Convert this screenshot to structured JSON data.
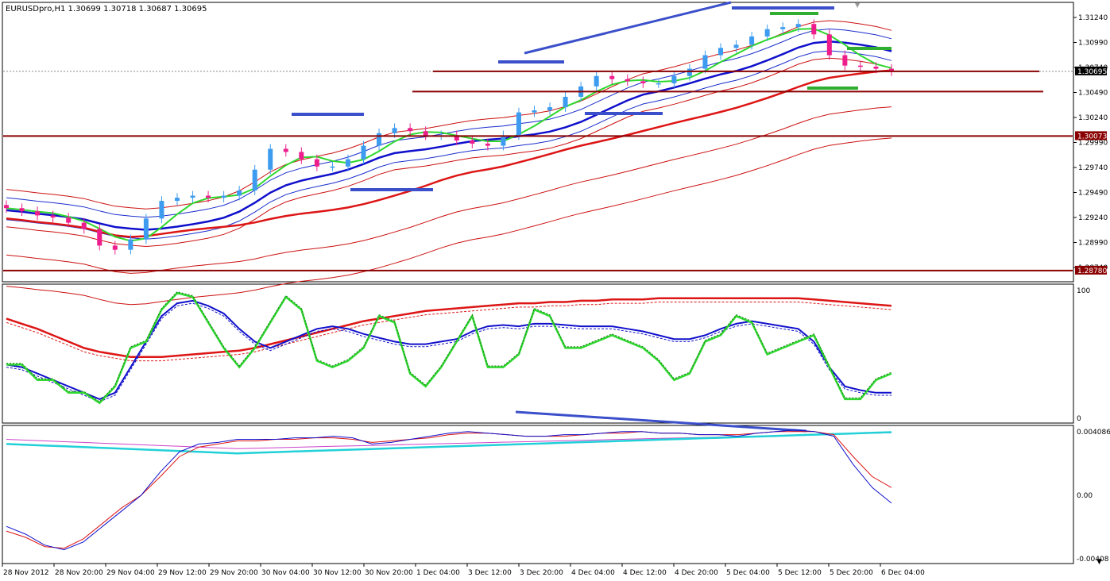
{
  "title": "EURUSDpro,H1  1.30699 1.30718 1.30687 1.30695",
  "colors": {
    "bull": "#3d9bf0",
    "bear": "#ee1d8c",
    "bb_blue": "#1a2ecc",
    "ema_blue": "#1010cc",
    "env_red": "#cc1010",
    "ema_red": "#dd1515",
    "ema_green": "#2ed82e",
    "hline": "#8a0000",
    "trend": "#3a4fc9",
    "green_mark": "#2fae2f",
    "stoch_green": "#2ed82e",
    "stoch_blue": "#1010cc",
    "stoch_red": "#dd1515",
    "macd_blue": "#1010cc",
    "macd_red": "#dd1515",
    "cyan": "#22d0d8",
    "magenta": "#cc44cc"
  },
  "price_axis": {
    "ticks": [
      "1.31240",
      "1.30990",
      "1.30740",
      "1.30490",
      "1.30240",
      "1.29990",
      "1.29740",
      "1.29490",
      "1.29240",
      "1.28990",
      "1.28740"
    ],
    "current_label": "1.30695",
    "level_labels": [
      "1.30073",
      "1.28780"
    ]
  },
  "stoch_axis": {
    "ticks": [
      "100",
      "0"
    ]
  },
  "macd_axis": {
    "ticks": [
      "0.004086",
      "0.00",
      "-0.00408"
    ]
  },
  "time_axis": {
    "labels": [
      "28 Nov 2012",
      "28 Nov 20:00",
      "29 Nov 04:00",
      "29 Nov 12:00",
      "29 Nov 20:00",
      "30 Nov 04:00",
      "30 Nov 12:00",
      "30 Nov 20:00",
      "1 Dec 04:00",
      "3 Dec 12:00",
      "3 Dec 20:00",
      "4 Dec 04:00",
      "4 Dec 12:00",
      "4 Dec 20:00",
      "5 Dec 04:00",
      "5 Dec 12:00",
      "5 Dec 20:00",
      "6 Dec 04:00"
    ]
  },
  "chart_data": {
    "type": "candlestick",
    "symbol": "EURUSDpro",
    "timeframe": "H1",
    "ohlc_header": {
      "open": 1.30699,
      "high": 1.30718,
      "low": 1.30687,
      "close": 1.30695
    },
    "price_range": [
      1.2868,
      1.3135
    ],
    "candles_close": [
      1.2938,
      1.2935,
      1.2931,
      1.2929,
      1.2924,
      1.2918,
      1.2902,
      1.2898,
      1.2908,
      1.2928,
      1.2945,
      1.2948,
      1.295,
      1.2948,
      1.295,
      1.2955,
      1.2975,
      1.2995,
      1.2992,
      1.2985,
      1.2978,
      1.2978,
      1.2985,
      1.2998,
      1.301,
      1.3015,
      1.3012,
      1.3008,
      1.3008,
      1.3003,
      1.3,
      1.2998,
      1.3008,
      1.303,
      1.3032,
      1.3035,
      1.3045,
      1.3055,
      1.3065,
      1.3062,
      1.306,
      1.3058,
      1.3058,
      1.3065,
      1.3072,
      1.3085,
      1.3092,
      1.3095,
      1.3103,
      1.311,
      1.3112,
      1.3115,
      1.3105,
      1.3085,
      1.3075,
      1.3074,
      1.3072,
      1.30695
    ],
    "horizontal_levels": [
      1.30695,
      1.30073,
      1.2878,
      1.305
    ],
    "stochastic_range": [
      0,
      100
    ],
    "stochastic_green": [
      42,
      42,
      30,
      30,
      20,
      20,
      12,
      25,
      55,
      60,
      85,
      98,
      95,
      75,
      55,
      40,
      55,
      75,
      95,
      85,
      45,
      40,
      45,
      55,
      80,
      75,
      35,
      25,
      40,
      60,
      80,
      40,
      40,
      50,
      85,
      80,
      55,
      55,
      60,
      65,
      60,
      55,
      45,
      30,
      35,
      60,
      65,
      80,
      75,
      50,
      55,
      60,
      65,
      40,
      15,
      15,
      30,
      35
    ],
    "stochastic_blue": [
      42,
      40,
      35,
      30,
      25,
      20,
      15,
      20,
      40,
      60,
      80,
      90,
      92,
      88,
      82,
      70,
      60,
      55,
      60,
      65,
      70,
      72,
      70,
      66,
      63,
      60,
      58,
      58,
      60,
      62,
      68,
      72,
      73,
      72,
      74,
      74,
      73,
      72,
      72,
      72,
      70,
      68,
      65,
      62,
      62,
      65,
      70,
      74,
      76,
      74,
      72,
      70,
      60,
      40,
      25,
      22,
      20,
      20
    ],
    "stochastic_red": [
      78,
      74,
      70,
      65,
      60,
      55,
      52,
      50,
      48,
      48,
      48,
      49,
      50,
      51,
      52,
      53,
      55,
      58,
      61,
      64,
      67,
      70,
      73,
      76,
      78,
      80,
      82,
      84,
      85,
      86,
      87,
      88,
      89,
      90,
      90,
      91,
      91,
      92,
      92,
      93,
      93,
      93,
      94,
      94,
      94,
      94,
      94,
      94,
      94,
      94,
      94,
      94,
      93,
      92,
      91,
      90,
      89,
      88
    ],
    "macd_range": [
      -0.00408,
      0.004086
    ],
    "macd_blue": [
      -0.002,
      -0.0025,
      -0.0032,
      -0.0035,
      -0.003,
      -0.002,
      -0.001,
      0.0,
      0.0015,
      0.0028,
      0.0033,
      0.0034,
      0.0036,
      0.0036,
      0.0036,
      0.0037,
      0.0037,
      0.0038,
      0.0037,
      0.0033,
      0.0034,
      0.0036,
      0.0038,
      0.004,
      0.0041,
      0.004,
      0.0039,
      0.0038,
      0.0038,
      0.0039,
      0.0039,
      0.004,
      0.0041,
      0.0041,
      0.004,
      0.004,
      0.0039,
      0.0039,
      0.0038,
      0.004,
      0.0041,
      0.0042,
      0.0041,
      0.0038,
      0.002,
      0.0005,
      -0.0005
    ],
    "macd_red": [
      -0.0023,
      -0.0027,
      -0.0033,
      -0.0034,
      -0.0028,
      -0.0018,
      -0.0008,
      0.0,
      0.0012,
      0.0025,
      0.0031,
      0.0033,
      0.0035,
      0.0035,
      0.0036,
      0.0036,
      0.0037,
      0.0037,
      0.0036,
      0.0034,
      0.0035,
      0.0036,
      0.0037,
      0.0039,
      0.004,
      0.004,
      0.0039,
      0.0038,
      0.0038,
      0.0038,
      0.0039,
      0.004,
      0.004,
      0.0041,
      0.004,
      0.004,
      0.0039,
      0.0039,
      0.0039,
      0.004,
      0.0041,
      0.0041,
      0.0041,
      0.0039,
      0.0025,
      0.0012,
      0.0005
    ]
  }
}
